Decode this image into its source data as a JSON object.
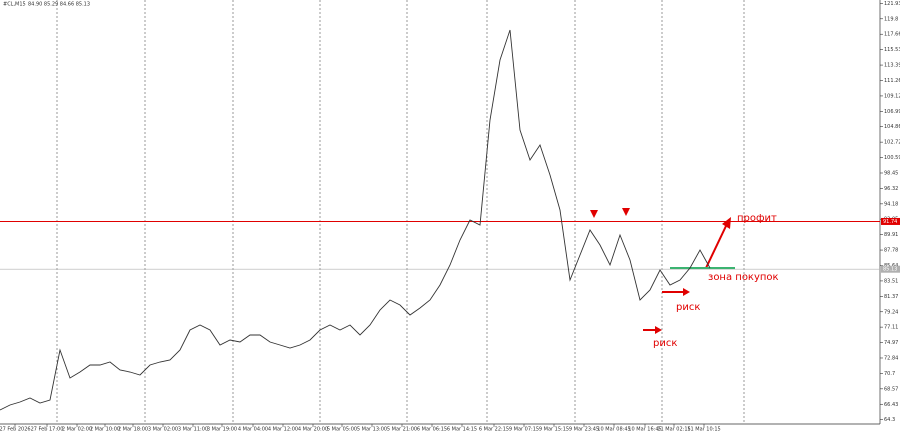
{
  "chart_data": {
    "type": "line",
    "symbol": "#CL,M15",
    "ohlc": "84.90 85.29 84.66 85.13",
    "x": [
      0,
      1,
      2,
      3,
      4,
      5,
      6,
      7,
      8,
      9,
      10,
      11,
      12,
      13,
      14,
      15,
      16,
      17,
      18,
      19,
      20,
      21,
      22,
      23,
      24,
      25,
      26,
      27,
      28,
      29,
      30,
      31,
      32,
      33,
      34,
      35,
      36,
      37,
      38,
      39,
      40,
      41,
      42,
      43,
      44,
      45,
      46,
      47,
      48,
      49,
      50,
      51,
      52,
      53,
      54,
      55,
      56,
      57,
      58,
      59,
      60,
      61,
      62,
      63,
      64,
      65,
      66,
      67,
      68,
      69,
      70,
      71
    ],
    "series": [
      {
        "color": "#333333",
        "values": [
          65.64,
          66.33,
          66.75,
          67.3,
          66.61,
          67.02,
          73.94,
          70.07,
          70.9,
          71.87,
          71.87,
          72.28,
          71.18,
          70.9,
          70.48,
          71.87,
          72.28,
          72.56,
          73.94,
          76.71,
          77.41,
          76.71,
          74.64,
          75.33,
          75.05,
          76.02,
          76.02,
          75.05,
          74.64,
          74.22,
          74.64,
          75.33,
          76.71,
          77.41,
          76.71,
          77.41,
          76.02,
          77.41,
          79.48,
          80.87,
          80.17,
          78.79,
          79.76,
          80.87,
          82.94,
          85.71,
          89.17,
          91.94,
          91.25,
          105.79,
          114.09,
          118.25,
          104.4,
          100.25,
          102.32,
          98.17,
          93.33,
          83.64,
          87.1,
          90.56,
          88.48,
          85.71,
          89.86,
          86.4,
          80.87,
          82.25,
          85.02,
          82.94,
          83.64,
          85.3,
          87.79,
          85.3
        ]
      }
    ],
    "xlim": [
      0,
      88
    ],
    "ylim": [
      63.7,
      122.4
    ],
    "xticks": [
      {
        "value": 1.5,
        "label": "27 Feb 2026"
      },
      {
        "value": 4.7,
        "label": "27 Feb 17:00"
      },
      {
        "value": 7.7,
        "label": "2 Mar 02:00"
      },
      {
        "value": 10.5,
        "label": "2 Mar 10:00"
      },
      {
        "value": 13.3,
        "label": "2 Mar 18:00"
      },
      {
        "value": 16.3,
        "label": "3 Mar 02:00"
      },
      {
        "value": 19.3,
        "label": "3 Mar 11:00"
      },
      {
        "value": 22.2,
        "label": "3 Mar 19:00"
      },
      {
        "value": 25.3,
        "label": "4 Mar 04:00"
      },
      {
        "value": 28.3,
        "label": "4 Mar 12:00"
      },
      {
        "value": 31.3,
        "label": "4 Mar 20:00"
      },
      {
        "value": 34.2,
        "label": "5 Mar 05:00"
      },
      {
        "value": 37.2,
        "label": "5 Mar 13:00"
      },
      {
        "value": 40.2,
        "label": "5 Mar 21:00"
      },
      {
        "value": 43.2,
        "label": "6 Mar 06:15"
      },
      {
        "value": 46.2,
        "label": "6 Mar 14:15"
      },
      {
        "value": 49.4,
        "label": "6 Mar 22:15"
      },
      {
        "value": 52.4,
        "label": "9 Mar 07:15"
      },
      {
        "value": 55.4,
        "label": "9 Mar 15:15"
      },
      {
        "value": 58.4,
        "label": "9 Mar 23:45"
      },
      {
        "value": 61.4,
        "label": "10 Mar 08:45"
      },
      {
        "value": 64.5,
        "label": "10 Mar 16:45"
      },
      {
        "value": 67.4,
        "label": "11 Mar 02:15"
      },
      {
        "value": 70.4,
        "label": "11 Mar 10:15"
      }
    ],
    "yticks": [
      121.93,
      119.8,
      117.66,
      115.53,
      113.39,
      111.26,
      109.12,
      106.99,
      104.86,
      102.72,
      100.59,
      98.45,
      96.32,
      94.18,
      92.05,
      89.91,
      87.78,
      85.64,
      83.51,
      81.37,
      79.24,
      77.11,
      74.97,
      72.84,
      70.7,
      68.57,
      66.43,
      64.3
    ],
    "hlines": [
      {
        "value": 91.74,
        "color": "#e00000"
      },
      {
        "value": 85.13,
        "color": "#b0b0b0"
      }
    ],
    "buy_zone": {
      "value": 85.3,
      "color": "#3cb371",
      "label": "зона покупок"
    },
    "annotations": [
      "профит",
      "риск",
      "риск"
    ]
  }
}
